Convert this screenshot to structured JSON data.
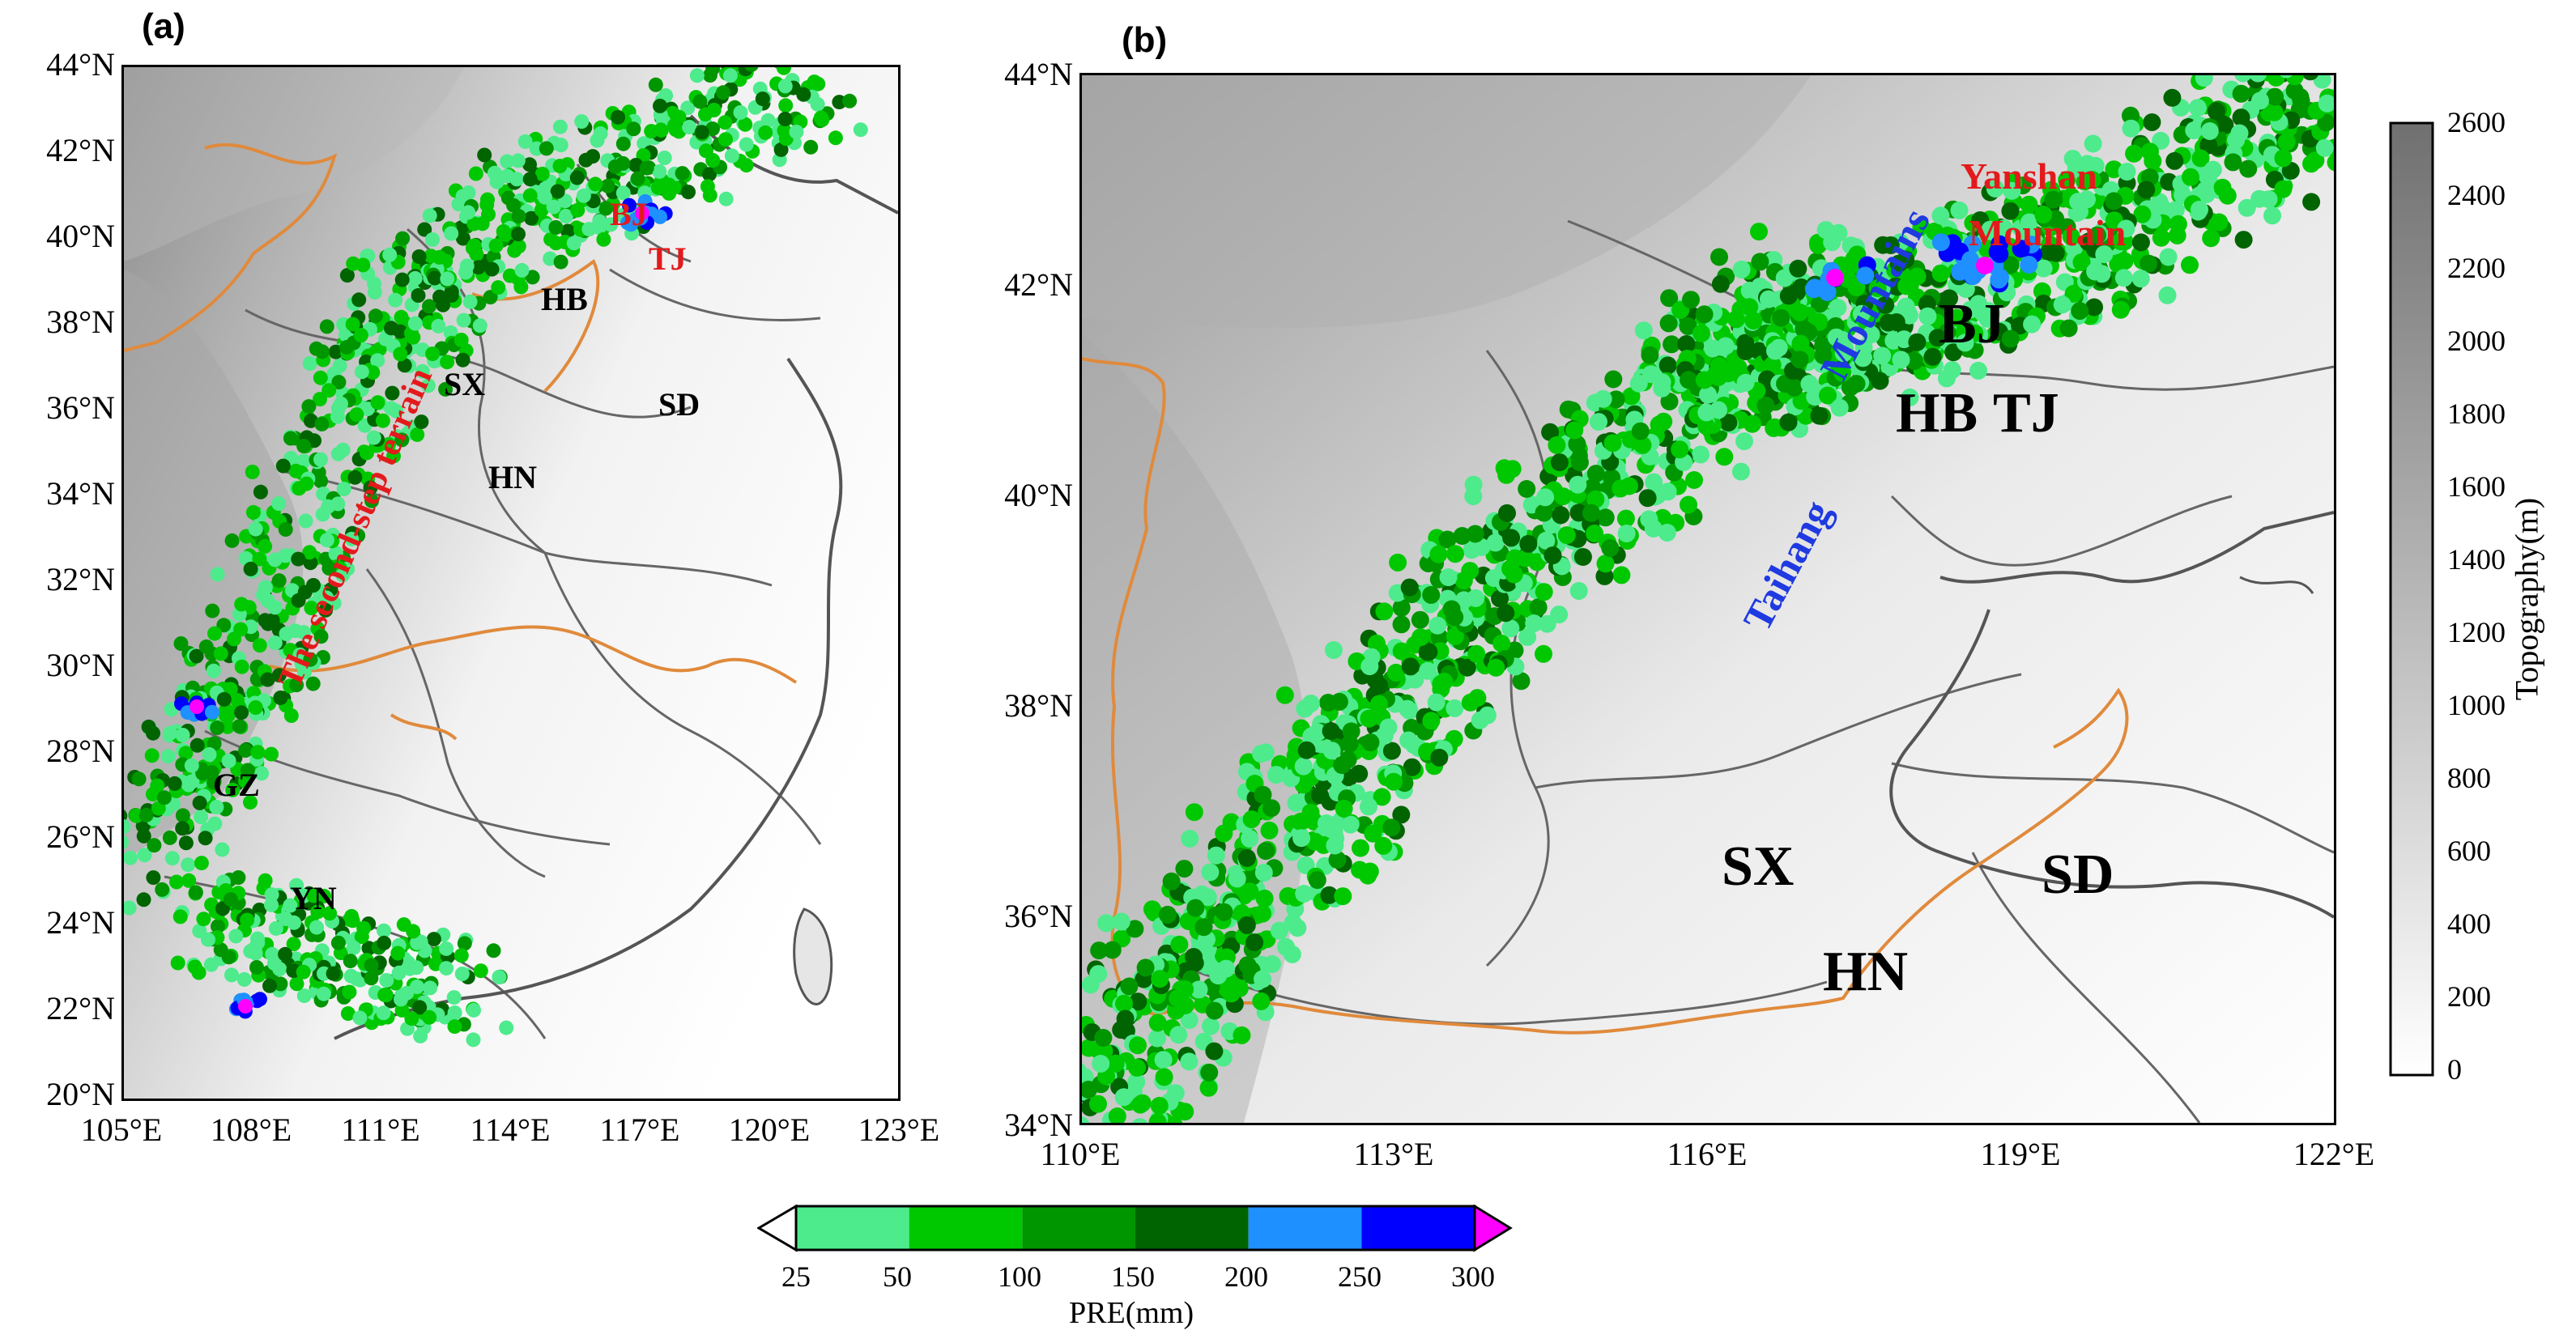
{
  "panel_a": {
    "label": "(a)",
    "lat_ticks": [
      "44°N",
      "42°N",
      "40°N",
      "38°N",
      "36°N",
      "34°N",
      "32°N",
      "30°N",
      "28°N",
      "26°N",
      "24°N",
      "22°N",
      "20°N"
    ],
    "lon_ticks": [
      "105°E",
      "108°E",
      "111°E",
      "114°E",
      "117°E",
      "120°E",
      "123°E"
    ],
    "regions": [
      "BJ",
      "TJ",
      "HB",
      "SX",
      "SD",
      "HN",
      "GZ",
      "YN"
    ],
    "annotation": "The second-step terrain"
  },
  "panel_b": {
    "label": "(b)",
    "lat_ticks": [
      "44°N",
      "42°N",
      "40°N",
      "38°N",
      "36°N",
      "34°N"
    ],
    "lon_ticks": [
      "110°E",
      "113°E",
      "116°E",
      "119°E",
      "122°E"
    ],
    "regions": [
      "BJ",
      "HB",
      "TJ",
      "SX",
      "SD",
      "HN"
    ],
    "annotation_taihang_1": "Taihang",
    "annotation_taihang_2": "Mountains",
    "annotation_yanshan_1": "Yanshan",
    "annotation_yanshan_2": "Mountain"
  },
  "topo_colorbar": {
    "label": "Topography(m)",
    "ticks": [
      "2600",
      "2400",
      "2200",
      "2000",
      "1800",
      "1600",
      "1400",
      "1200",
      "1000",
      "800",
      "600",
      "400",
      "200",
      "0"
    ]
  },
  "pre_colorbar": {
    "label": "PRE(mm)",
    "ticks": [
      "25",
      "50",
      "100",
      "150",
      "200",
      "250",
      "300"
    ],
    "colors": [
      "#4deb8c",
      "#00c800",
      "#009600",
      "#006400",
      "#1e90ff",
      "#0000ff",
      "#ff00ff"
    ]
  },
  "colors": {
    "pre_25": "#4deb8c",
    "pre_50": "#00c800",
    "pre_100": "#009600",
    "pre_150": "#006400",
    "pre_200": "#1e90ff",
    "pre_250": "#0000ff",
    "pre_300": "#ff00ff",
    "boundary_orange": "#e08a3c",
    "annotation_red": "#e31a1c",
    "annotation_blue": "#1f3ae0"
  }
}
